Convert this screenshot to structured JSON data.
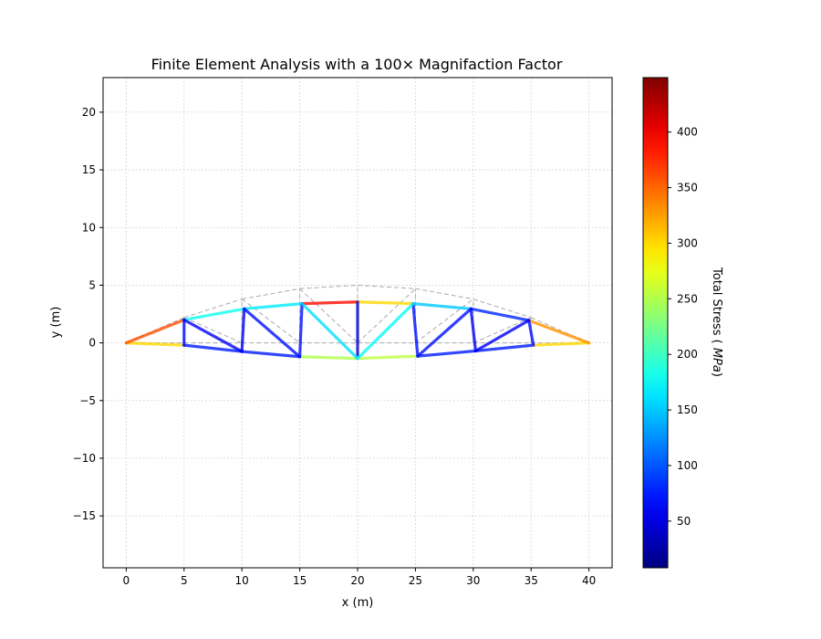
{
  "chart_data": {
    "type": "truss-stress-plot",
    "title": "Finite Element Analysis with a 100× Magnifaction Factor",
    "xlabel": "x (m)",
    "ylabel": "y (m)",
    "xlim": [
      -2,
      42
    ],
    "ylim": [
      -19.5,
      23
    ],
    "x_ticks": [
      0,
      5,
      10,
      15,
      20,
      25,
      30,
      35,
      40
    ],
    "y_ticks": [
      -15,
      -10,
      -5,
      0,
      5,
      10,
      15,
      20
    ],
    "grid": true,
    "colorbar": {
      "label": "Total Stress (MPa)",
      "min": 8,
      "max": 449,
      "ticks": [
        50,
        100,
        150,
        200,
        250,
        300,
        350,
        400
      ],
      "colormap": "jet"
    },
    "undeformed": {
      "style": "dashed",
      "color": "#aaaaaa",
      "nodes": {
        "B0": [
          0,
          0
        ],
        "B1": [
          5,
          0
        ],
        "B2": [
          10,
          0
        ],
        "B3": [
          15,
          0
        ],
        "B4": [
          20,
          0
        ],
        "B5": [
          25,
          0
        ],
        "B6": [
          30,
          0
        ],
        "B7": [
          35,
          0
        ],
        "B8": [
          40,
          0
        ],
        "T1": [
          5,
          2.2
        ],
        "T2": [
          10,
          3.8
        ],
        "T3": [
          15,
          4.7
        ],
        "T4": [
          20,
          5.0
        ],
        "T5": [
          25,
          4.7
        ],
        "T6": [
          30,
          3.8
        ],
        "T7": [
          35,
          2.2
        ]
      },
      "members": [
        [
          "B0",
          "B1"
        ],
        [
          "B1",
          "B2"
        ],
        [
          "B2",
          "B3"
        ],
        [
          "B3",
          "B4"
        ],
        [
          "B4",
          "B5"
        ],
        [
          "B5",
          "B6"
        ],
        [
          "B6",
          "B7"
        ],
        [
          "B7",
          "B8"
        ],
        [
          "B0",
          "T1"
        ],
        [
          "T1",
          "T2"
        ],
        [
          "T2",
          "T3"
        ],
        [
          "T3",
          "T4"
        ],
        [
          "T4",
          "T5"
        ],
        [
          "T5",
          "T6"
        ],
        [
          "T6",
          "T7"
        ],
        [
          "T7",
          "B8"
        ],
        [
          "B1",
          "T1"
        ],
        [
          "B2",
          "T2"
        ],
        [
          "B3",
          "T3"
        ],
        [
          "B4",
          "T4"
        ],
        [
          "B5",
          "T5"
        ],
        [
          "B6",
          "T6"
        ],
        [
          "B7",
          "T7"
        ],
        [
          "T1",
          "B2"
        ],
        [
          "T2",
          "B3"
        ],
        [
          "T3",
          "B4"
        ],
        [
          "B4",
          "T5"
        ],
        [
          "B5",
          "T6"
        ],
        [
          "B6",
          "T7"
        ]
      ]
    },
    "deformed": {
      "nodes": {
        "B0": [
          0,
          0
        ],
        "B1": [
          5,
          -0.2
        ],
        "B2": [
          10,
          -0.75
        ],
        "B3": [
          15,
          -1.2
        ],
        "B4": [
          20,
          -1.35
        ],
        "B5": [
          25.2,
          -1.15
        ],
        "B6": [
          30.2,
          -0.7
        ],
        "B7": [
          35.2,
          -0.2
        ],
        "B8": [
          40,
          0
        ],
        "T1": [
          5,
          2.0
        ],
        "T2": [
          10.2,
          2.95
        ],
        "T3": [
          15.2,
          3.4
        ],
        "T4": [
          20,
          3.55
        ],
        "T5": [
          24.8,
          3.4
        ],
        "T6": [
          29.8,
          2.95
        ],
        "T7": [
          34.8,
          1.95
        ]
      },
      "members": [
        {
          "n": [
            "B0",
            "B1"
          ],
          "stress": 300
        },
        {
          "n": [
            "B1",
            "B2"
          ],
          "stress": 75
        },
        {
          "n": [
            "B2",
            "B3"
          ],
          "stress": 75
        },
        {
          "n": [
            "B3",
            "B4"
          ],
          "stress": 250
        },
        {
          "n": [
            "B4",
            "B5"
          ],
          "stress": 255
        },
        {
          "n": [
            "B5",
            "B6"
          ],
          "stress": 75
        },
        {
          "n": [
            "B6",
            "B7"
          ],
          "stress": 75
        },
        {
          "n": [
            "B7",
            "B8"
          ],
          "stress": 300
        },
        {
          "n": [
            "B0",
            "T1"
          ],
          "stress": 360
        },
        {
          "n": [
            "T1",
            "T2"
          ],
          "stress": 180
        },
        {
          "n": [
            "T2",
            "T3"
          ],
          "stress": 165
        },
        {
          "n": [
            "T3",
            "T4"
          ],
          "stress": 390
        },
        {
          "n": [
            "T4",
            "T5"
          ],
          "stress": 300
        },
        {
          "n": [
            "T5",
            "T6"
          ],
          "stress": 150
        },
        {
          "n": [
            "T6",
            "T7"
          ],
          "stress": 80
        },
        {
          "n": [
            "T7",
            "B8"
          ],
          "stress": 330
        },
        {
          "n": [
            "B1",
            "T1"
          ],
          "stress": 70
        },
        {
          "n": [
            "B2",
            "T2"
          ],
          "stress": 60
        },
        {
          "n": [
            "B3",
            "T3"
          ],
          "stress": 70
        },
        {
          "n": [
            "B4",
            "T4"
          ],
          "stress": 40
        },
        {
          "n": [
            "B5",
            "T5"
          ],
          "stress": 70
        },
        {
          "n": [
            "B6",
            "T6"
          ],
          "stress": 60
        },
        {
          "n": [
            "B7",
            "T7"
          ],
          "stress": 70
        },
        {
          "n": [
            "T1",
            "B2"
          ],
          "stress": 60
        },
        {
          "n": [
            "T2",
            "B3"
          ],
          "stress": 70
        },
        {
          "n": [
            "T3",
            "B4"
          ],
          "stress": 160
        },
        {
          "n": [
            "B4",
            "T5"
          ],
          "stress": 175
        },
        {
          "n": [
            "B5",
            "T6"
          ],
          "stress": 70
        },
        {
          "n": [
            "B6",
            "T7"
          ],
          "stress": 60
        }
      ]
    }
  }
}
